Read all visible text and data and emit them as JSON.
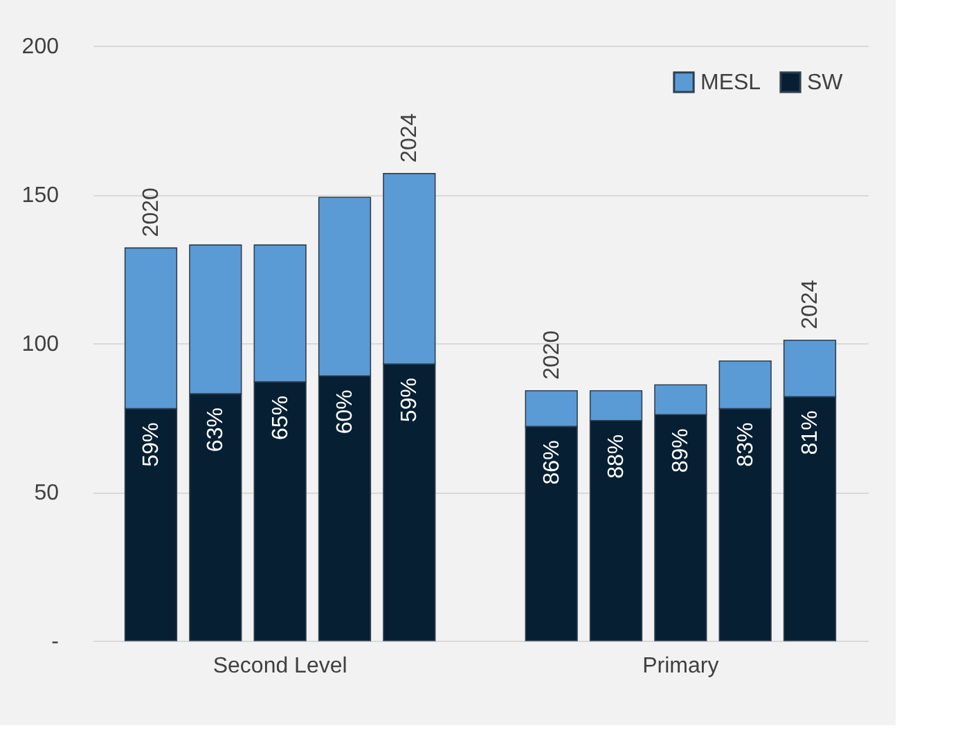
{
  "chart_data": {
    "type": "bar",
    "stacked": true,
    "categories": [
      "2020",
      null,
      null,
      null,
      "2024",
      "2020",
      null,
      null,
      null,
      "2024"
    ],
    "series": [
      {
        "name": "SW",
        "color": "#071f33",
        "values": [
          78,
          83,
          87,
          89,
          93,
          72,
          74,
          76,
          78,
          82
        ]
      },
      {
        "name": "MESL",
        "color": "#5b9bd5",
        "values": [
          54,
          50,
          46,
          60,
          64,
          12,
          10,
          10,
          16,
          19
        ]
      }
    ],
    "ylim": [
      0,
      200
    ],
    "yticks": [
      {
        "value": 0,
        "label": "-"
      },
      50,
      100,
      150,
      200
    ],
    "grid": "y",
    "legend": "top right",
    "annotations": [
      "Second Level",
      "Primary",
      {
        "text": "59%",
        "y": 78
      },
      {
        "text": "63%",
        "y": 83
      },
      {
        "text": "65%",
        "y": 87
      },
      {
        "text": "60%",
        "y": 89
      },
      {
        "text": "59%",
        "y": 93
      },
      {
        "text": "86%",
        "y": 72
      },
      {
        "text": "88%",
        "y": 74
      },
      {
        "text": "89%",
        "y": 76
      },
      {
        "text": "83%",
        "y": 78
      },
      {
        "text": "81%",
        "y": 82
      }
    ]
  }
}
